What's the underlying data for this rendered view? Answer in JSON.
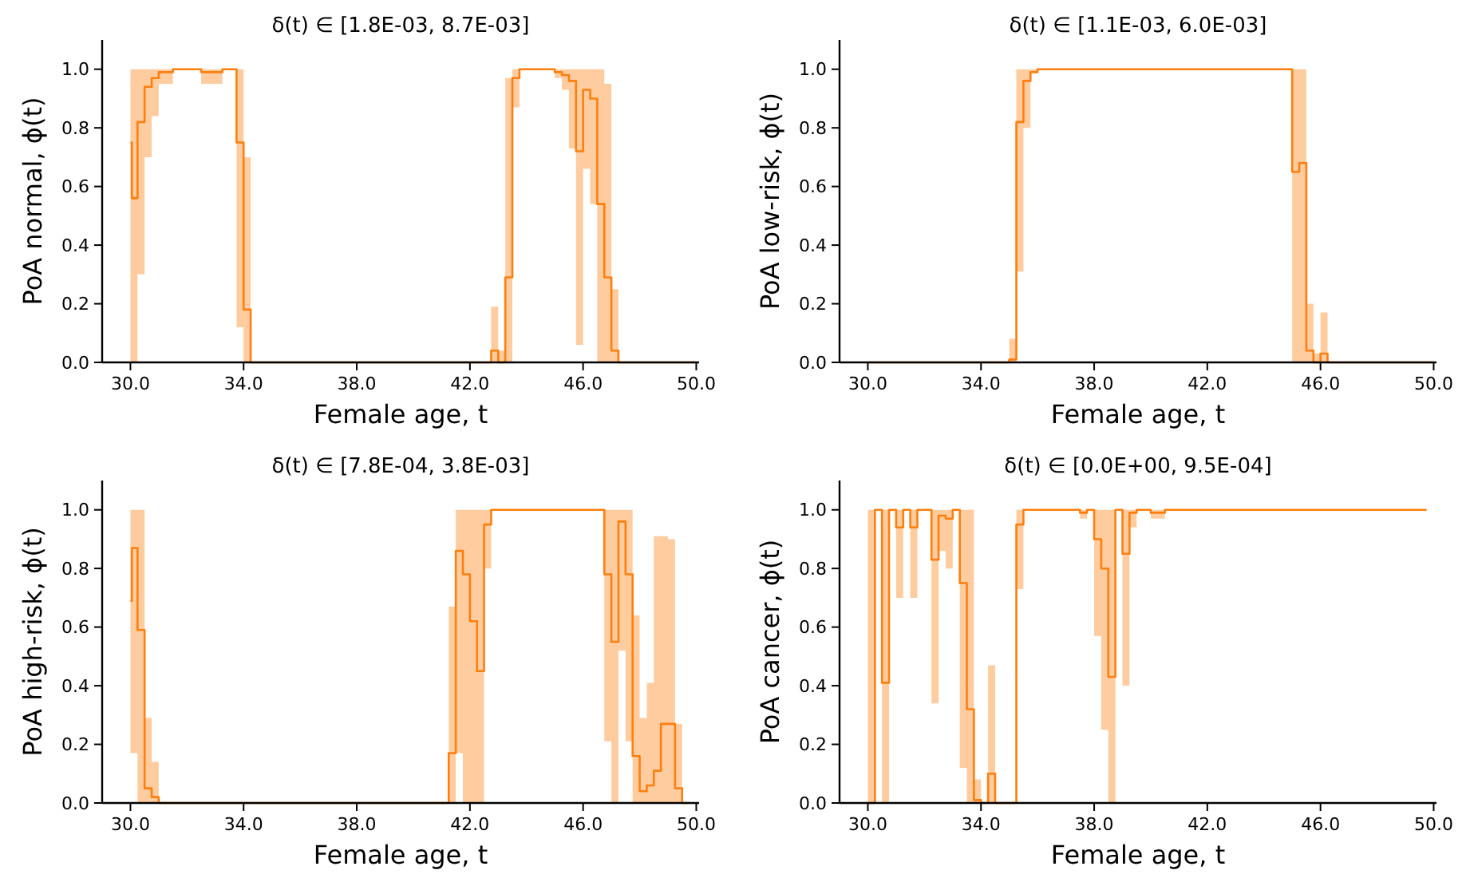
{
  "chart_data": [
    {
      "type": "step",
      "title": "δ(t) ∈ [1.8E-03, 8.7E-03]",
      "xlabel": "Female age, t",
      "ylabel": "PoA normal, ϕ(t)",
      "xlim": [
        29.0,
        50.1
      ],
      "ylim": [
        0,
        1.1
      ],
      "xticks": [
        {
          "value": 30,
          "label": "30.0"
        },
        {
          "value": 34,
          "label": "34.0"
        },
        {
          "value": 38,
          "label": "38.0"
        },
        {
          "value": 42,
          "label": "42.0"
        },
        {
          "value": 46,
          "label": "46.0"
        },
        {
          "value": 50,
          "label": "50.0"
        }
      ],
      "yticks": [
        {
          "value": 0,
          "label": "0.0"
        },
        {
          "value": 0.2,
          "label": "0.2"
        },
        {
          "value": 0.4,
          "label": "0.4"
        },
        {
          "value": 0.6,
          "label": "0.6"
        },
        {
          "value": 0.8,
          "label": "0.8"
        },
        {
          "value": 1,
          "label": "1.0"
        }
      ],
      "series": [
        {
          "color": "#ff7f0e",
          "x": [
            30.0,
            30.05,
            30.25,
            30.5,
            30.75,
            31.0,
            31.5,
            32.5,
            33.25,
            33.75,
            34.0,
            34.25,
            42.75,
            43.0,
            43.25,
            43.5,
            43.75,
            45.0,
            45.25,
            45.5,
            45.75,
            46.0,
            46.25,
            46.5,
            46.75,
            47.0,
            47.25,
            50.0
          ],
          "values": [
            0.75,
            0.56,
            0.82,
            0.94,
            0.97,
            0.99,
            1.0,
            0.99,
            1.0,
            0.75,
            0.18,
            0,
            0.04,
            0,
            0.29,
            0.97,
            1.0,
            0.99,
            0.98,
            0.96,
            0.72,
            0.93,
            0.9,
            0.54,
            0.29,
            0.04,
            0,
            0
          ],
          "lower": [
            0,
            0,
            0.3,
            0.7,
            0.84,
            0.95,
            1.0,
            0.95,
            1.0,
            0.12,
            0,
            0,
            0,
            0,
            0,
            0.87,
            1.0,
            0.97,
            0.93,
            0.73,
            0.06,
            0.66,
            0.54,
            0,
            0,
            0,
            0,
            0
          ],
          "upper": [
            1,
            1,
            1,
            1,
            1,
            1,
            1,
            1,
            1,
            1,
            0.7,
            0,
            0.19,
            0.04,
            0.97,
            1,
            1,
            1,
            1,
            1,
            1,
            1,
            1,
            1,
            0.95,
            0.25,
            0,
            0
          ]
        }
      ]
    },
    {
      "type": "step",
      "title": "δ(t) ∈ [1.1E-03, 6.0E-03]",
      "xlabel": "Female age, t",
      "ylabel": "PoA low-risk, ϕ(t)",
      "xlim": [
        29.0,
        50.1
      ],
      "ylim": [
        0,
        1.1
      ],
      "xticks": [
        {
          "value": 30,
          "label": "30.0"
        },
        {
          "value": 34,
          "label": "34.0"
        },
        {
          "value": 38,
          "label": "38.0"
        },
        {
          "value": 42,
          "label": "42.0"
        },
        {
          "value": 46,
          "label": "46.0"
        },
        {
          "value": 50,
          "label": "50.0"
        }
      ],
      "yticks": [
        {
          "value": 0,
          "label": "0.0"
        },
        {
          "value": 0.2,
          "label": "0.2"
        },
        {
          "value": 0.4,
          "label": "0.4"
        },
        {
          "value": 0.6,
          "label": "0.6"
        },
        {
          "value": 0.8,
          "label": "0.8"
        },
        {
          "value": 1,
          "label": "1.0"
        }
      ],
      "series": [
        {
          "color": "#ff7f0e",
          "x": [
            30.0,
            35.0,
            35.25,
            35.5,
            35.75,
            36.0,
            45.0,
            45.25,
            45.5,
            45.75,
            46.0,
            46.25,
            50.0
          ],
          "values": [
            0,
            0.01,
            0.82,
            0.96,
            0.99,
            1.0,
            0.65,
            0.68,
            0.04,
            0,
            0.03,
            0,
            0
          ],
          "lower": [
            0,
            0,
            0.31,
            0.8,
            0.99,
            1.0,
            0,
            0,
            0,
            0,
            0,
            0,
            0
          ],
          "upper": [
            0,
            0.08,
            1,
            1,
            1,
            1,
            1,
            1,
            0.2,
            0.03,
            0.17,
            0,
            0
          ]
        }
      ]
    },
    {
      "type": "step",
      "title": "δ(t) ∈ [7.8E-04, 3.8E-03]",
      "xlabel": "Female age, t",
      "ylabel": "PoA high-risk, ϕ(t)",
      "xlim": [
        29.0,
        50.1
      ],
      "ylim": [
        0,
        1.1
      ],
      "xticks": [
        {
          "value": 30,
          "label": "30.0"
        },
        {
          "value": 34,
          "label": "34.0"
        },
        {
          "value": 38,
          "label": "38.0"
        },
        {
          "value": 42,
          "label": "42.0"
        },
        {
          "value": 46,
          "label": "46.0"
        },
        {
          "value": 50,
          "label": "50.0"
        }
      ],
      "yticks": [
        {
          "value": 0,
          "label": "0.0"
        },
        {
          "value": 0.2,
          "label": "0.2"
        },
        {
          "value": 0.4,
          "label": "0.4"
        },
        {
          "value": 0.6,
          "label": "0.6"
        },
        {
          "value": 0.8,
          "label": "0.8"
        },
        {
          "value": 1,
          "label": "1.0"
        }
      ],
      "series": [
        {
          "color": "#ff7f0e",
          "x": [
            30.0,
            30.05,
            30.25,
            30.5,
            30.75,
            31.0,
            41.25,
            41.5,
            41.75,
            42.0,
            42.25,
            42.5,
            42.75,
            46.75,
            47.0,
            47.25,
            47.5,
            47.75,
            48.0,
            48.25,
            48.5,
            48.75,
            49.0,
            49.25,
            49.5,
            49.75
          ],
          "values": [
            0.69,
            0.87,
            0.59,
            0.05,
            0.02,
            0,
            0.17,
            0.86,
            0.78,
            0.62,
            0.45,
            0.95,
            1.0,
            0.78,
            0.55,
            0.96,
            0.78,
            0.16,
            0.04,
            0.06,
            0.11,
            0.27,
            0.27,
            0.05,
            0,
            0
          ],
          "lower": [
            0.17,
            0.17,
            0,
            0,
            0,
            0,
            0,
            0.17,
            0,
            0,
            0,
            0.8,
            1.0,
            0.21,
            0,
            0.52,
            0.21,
            0,
            0,
            0,
            0,
            0,
            0,
            0,
            0,
            0
          ],
          "upper": [
            1,
            1,
            1,
            0.29,
            0.14,
            0,
            0.67,
            1,
            1,
            1,
            1,
            1,
            1,
            1,
            1,
            1,
            1,
            0.64,
            0.29,
            0.41,
            0.91,
            0.91,
            0.9,
            0.27,
            0,
            0
          ]
        }
      ]
    },
    {
      "type": "step",
      "title": "δ(t) ∈ [0.0E+00, 9.5E-04]",
      "xlabel": "Female age, t",
      "ylabel": "PoA cancer, ϕ(t)",
      "xlim": [
        29.0,
        50.1
      ],
      "ylim": [
        0,
        1.1
      ],
      "xticks": [
        {
          "value": 30,
          "label": "30.0"
        },
        {
          "value": 34,
          "label": "34.0"
        },
        {
          "value": 38,
          "label": "38.0"
        },
        {
          "value": 42,
          "label": "42.0"
        },
        {
          "value": 46,
          "label": "46.0"
        },
        {
          "value": 50,
          "label": "50.0"
        }
      ],
      "yticks": [
        {
          "value": 0,
          "label": "0.0"
        },
        {
          "value": 0.2,
          "label": "0.2"
        },
        {
          "value": 0.4,
          "label": "0.4"
        },
        {
          "value": 0.6,
          "label": "0.6"
        },
        {
          "value": 0.8,
          "label": "0.8"
        },
        {
          "value": 1,
          "label": "1.0"
        }
      ],
      "series": [
        {
          "color": "#ff7f0e",
          "x": [
            30.0,
            30.25,
            30.5,
            30.75,
            31.0,
            31.25,
            31.5,
            31.75,
            32.25,
            32.5,
            32.75,
            33.0,
            33.25,
            33.5,
            33.75,
            34.0,
            34.25,
            34.5,
            35.25,
            35.5,
            37.5,
            37.75,
            38.0,
            38.25,
            38.5,
            38.75,
            39.0,
            39.25,
            39.5,
            40.0,
            40.5,
            49.75
          ],
          "values": [
            0,
            1.0,
            0.41,
            1.0,
            0.94,
            1.0,
            0.94,
            1.0,
            0.83,
            0.98,
            0.97,
            1.0,
            0.75,
            0.32,
            0.01,
            0,
            0.1,
            0,
            0.95,
            1.0,
            0.99,
            1.0,
            0.9,
            0.8,
            0.43,
            1.0,
            0.85,
            0.99,
            1.0,
            0.99,
            1.0,
            1.0
          ],
          "lower": [
            0,
            1.0,
            0,
            1.0,
            0.7,
            1.0,
            0.7,
            1.0,
            0.34,
            0.86,
            0.8,
            1.0,
            0.12,
            0,
            0,
            0,
            0,
            0,
            0.73,
            1.0,
            0.97,
            1.0,
            0.57,
            0.25,
            0,
            1.0,
            0.4,
            0.94,
            1.0,
            0.97,
            1.0,
            1.0
          ],
          "upper": [
            1,
            1,
            1,
            1,
            1,
            1,
            1,
            1,
            1,
            1,
            1,
            1,
            1,
            1,
            0.08,
            0,
            0.47,
            0,
            1,
            1,
            1,
            1,
            1,
            1,
            1,
            1,
            1,
            1,
            1,
            1,
            1,
            1
          ]
        }
      ]
    }
  ]
}
